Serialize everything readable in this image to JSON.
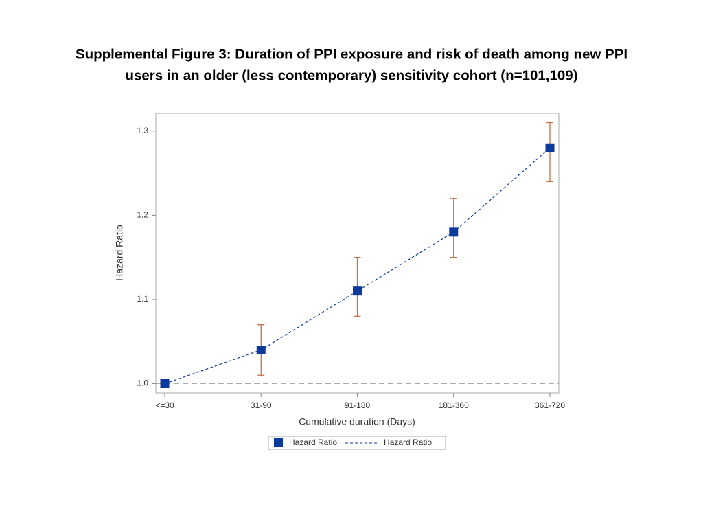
{
  "chart_data": {
    "type": "line_errorbar",
    "title": [
      "Supplemental Figure 3: Duration of PPI exposure and risk of death among new PPI",
      "users in an older (less contemporary) sensitivity cohort (n=101,109)"
    ],
    "x_label": "Cumulative duration (Days)",
    "y_label": "Hazard Ratio",
    "categories": [
      "<=30",
      "31-90",
      "91-180",
      "181-360",
      "361-720"
    ],
    "series": [
      {
        "name": "Hazard Ratio",
        "color": "#0b3a9c",
        "error_color": "#c0714a",
        "values": [
          1.0,
          1.04,
          1.11,
          1.18,
          1.28
        ],
        "ci_lower": [
          null,
          1.01,
          1.08,
          1.15,
          1.24
        ],
        "ci_upper": [
          null,
          1.07,
          1.15,
          1.22,
          1.31
        ]
      }
    ],
    "legend_entries": [
      {
        "label": "Hazard Ratio",
        "symbol": "marker"
      },
      {
        "label": "Hazard Ratio",
        "symbol": "line"
      }
    ],
    "reference_line": 1.0,
    "ylim": [
      0.989,
      1.321
    ],
    "yticks": [
      {
        "value": 1.0,
        "label": "1.0"
      },
      1.1,
      1.2,
      1.3
    ]
  }
}
